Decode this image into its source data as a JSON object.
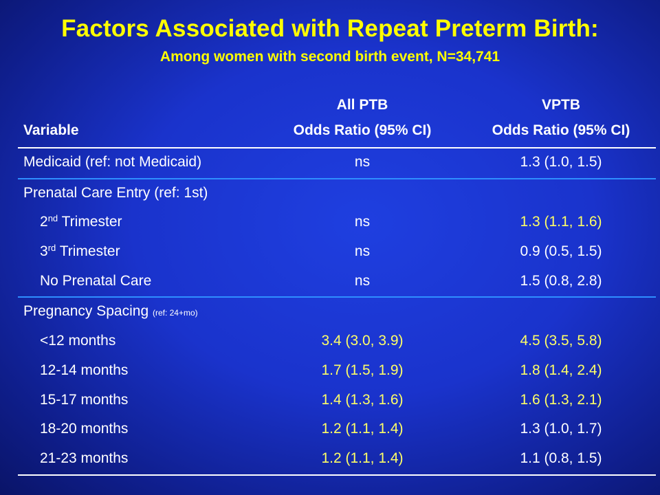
{
  "title": "Factors Associated with Repeat Preterm Birth:",
  "subtitle": "Among women with second birth event, N=34,741",
  "header": {
    "variable": "Variable",
    "col1_line1": "All PTB",
    "col1_line2": "Odds Ratio (95% CI)",
    "col2_line1": "VPTB",
    "col2_line2": "Odds Ratio (95% CI)"
  },
  "rows": [
    {
      "label": "Medicaid (ref: not Medicaid)",
      "all_ptb": "ns",
      "vptb": "1.3 (1.0, 1.5)"
    },
    {
      "label": "Prenatal Care Entry (ref: 1st)",
      "all_ptb": "",
      "vptb": ""
    },
    {
      "label_num": "2",
      "label_sup": "nd",
      "label_rest": " Trimester",
      "all_ptb": "ns",
      "vptb": "1.3 (1.1, 1.6)"
    },
    {
      "label_num": "3",
      "label_sup": "rd",
      "label_rest": " Trimester",
      "all_ptb": "ns",
      "vptb": "0.9 (0.5, 1.5)"
    },
    {
      "label": "No Prenatal Care",
      "all_ptb": "ns",
      "vptb": "1.5 (0.8, 2.8)"
    },
    {
      "label": "Pregnancy Spacing ",
      "label_small": "(ref: 24+mo)",
      "all_ptb": "",
      "vptb": ""
    },
    {
      "label": "<12 months",
      "all_ptb": "3.4 (3.0, 3.9)",
      "vptb": "4.5 (3.5, 5.8)"
    },
    {
      "label": "12-14 months",
      "all_ptb": "1.7 (1.5, 1.9)",
      "vptb": "1.8 (1.4, 2.4)"
    },
    {
      "label": "15-17 months",
      "all_ptb": "1.4 (1.3, 1.6)",
      "vptb": "1.6 (1.3, 2.1)"
    },
    {
      "label": "18-20 months",
      "all_ptb": "1.2 (1.1, 1.4)",
      "vptb": "1.3 (1.0, 1.7)"
    },
    {
      "label": "21-23 months",
      "all_ptb": "1.2 (1.1, 1.4)",
      "vptb": "1.1 (0.8, 1.5)"
    }
  ],
  "colors": {
    "title": "#ffff00",
    "highlight": "#ffff66",
    "text": "#ffffff",
    "background": "#1a33cc",
    "separator": "#2f8fff"
  }
}
